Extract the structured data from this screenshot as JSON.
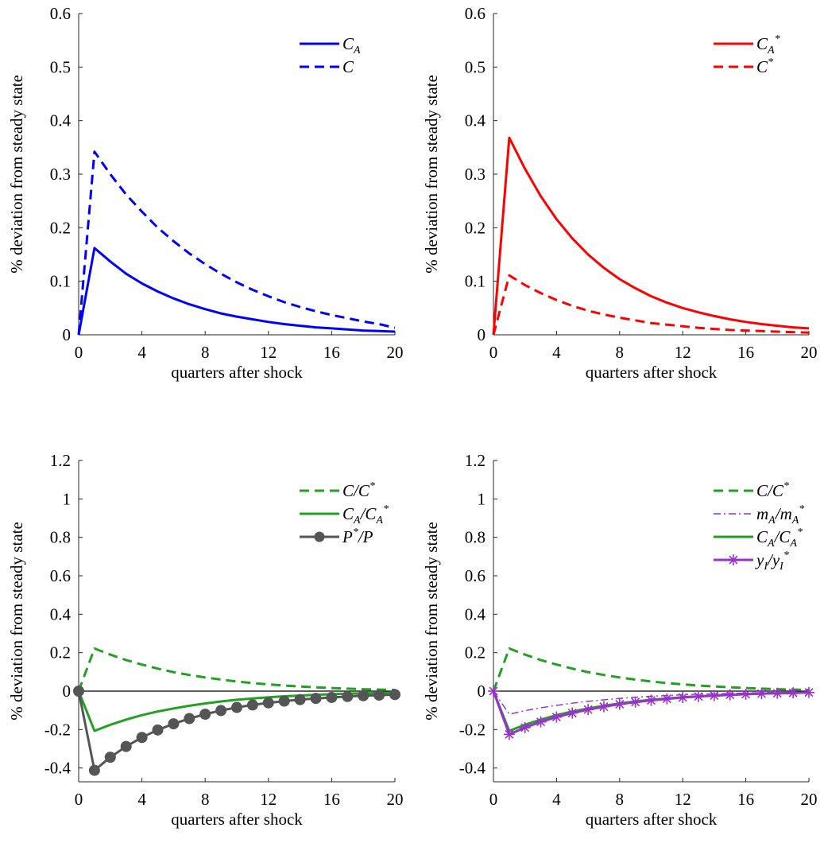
{
  "chart_data": [
    {
      "type": "line",
      "xlabel": "quarters after shock",
      "ylabel": "% deviation from steady state",
      "xlim": [
        0,
        20
      ],
      "ylim": [
        0,
        0.6
      ],
      "xticks": [
        0,
        4,
        8,
        12,
        16,
        20
      ],
      "yticks": [
        "0",
        "0.1",
        "0.2",
        "0.3",
        "0.4",
        "0.5",
        "0.6"
      ],
      "legend_position": "top-right",
      "x": [
        0,
        1,
        2,
        3,
        4,
        5,
        6,
        7,
        8,
        9,
        10,
        11,
        12,
        13,
        14,
        15,
        16,
        17,
        18,
        19,
        20
      ],
      "series": [
        {
          "name": "C_A",
          "color": "#0000ff",
          "style": "solid",
          "values": [
            0,
            0.162,
            0.137,
            0.114,
            0.096,
            0.081,
            0.068,
            0.057,
            0.048,
            0.04,
            0.034,
            0.029,
            0.024,
            0.02,
            0.017,
            0.014,
            0.012,
            0.01,
            0.008,
            0.007,
            0.006
          ]
        },
        {
          "name": "C",
          "color": "#0000ff",
          "style": "dashed",
          "values": [
            0,
            0.342,
            0.3,
            0.262,
            0.23,
            0.2,
            0.175,
            0.152,
            0.132,
            0.114,
            0.098,
            0.084,
            0.072,
            0.061,
            0.052,
            0.044,
            0.037,
            0.031,
            0.025,
            0.02,
            0.013
          ]
        }
      ]
    },
    {
      "type": "line",
      "xlabel": "quarters after shock",
      "ylabel": "% deviation from steady state",
      "xlim": [
        0,
        20
      ],
      "ylim": [
        0,
        0.6
      ],
      "xticks": [
        0,
        4,
        8,
        12,
        16,
        20
      ],
      "yticks": [
        "0",
        "0.1",
        "0.2",
        "0.3",
        "0.4",
        "0.5",
        "0.6"
      ],
      "legend_position": "top-right",
      "x": [
        0,
        1,
        2,
        3,
        4,
        5,
        6,
        7,
        8,
        9,
        10,
        11,
        12,
        13,
        14,
        15,
        16,
        17,
        18,
        19,
        20
      ],
      "series": [
        {
          "name": "C*_A",
          "color": "#ff0000",
          "style": "solid",
          "values": [
            0,
            0.368,
            0.31,
            0.259,
            0.216,
            0.18,
            0.15,
            0.125,
            0.104,
            0.087,
            0.072,
            0.06,
            0.05,
            0.042,
            0.035,
            0.029,
            0.024,
            0.02,
            0.017,
            0.014,
            0.012
          ]
        },
        {
          "name": "C*",
          "color": "#ff0000",
          "style": "dashed",
          "values": [
            0,
            0.111,
            0.093,
            0.078,
            0.065,
            0.054,
            0.045,
            0.038,
            0.032,
            0.027,
            0.022,
            0.019,
            0.016,
            0.013,
            0.011,
            0.009,
            0.008,
            0.007,
            0.006,
            0.005,
            0.004
          ]
        }
      ]
    },
    {
      "type": "line",
      "xlabel": "quarters after shock",
      "ylabel": "% deviation from steady state",
      "xlim": [
        0,
        20
      ],
      "ylim": [
        -0.45,
        1.2
      ],
      "xticks": [
        0,
        4,
        8,
        12,
        16,
        20
      ],
      "yticks": [
        "-0.4",
        "-0.2",
        "0",
        "0.2",
        "0.4",
        "0.6",
        "0.8",
        "1",
        "1.2"
      ],
      "legend_position": "top-right",
      "zero_line": true,
      "x": [
        0,
        1,
        2,
        3,
        4,
        5,
        6,
        7,
        8,
        9,
        10,
        11,
        12,
        13,
        14,
        15,
        16,
        17,
        18,
        19,
        20
      ],
      "series": [
        {
          "name": "C/C*",
          "color": "#22a022",
          "style": "dashed",
          "values": [
            0,
            0.222,
            0.19,
            0.162,
            0.138,
            0.117,
            0.099,
            0.084,
            0.071,
            0.06,
            0.05,
            0.042,
            0.035,
            0.029,
            0.024,
            0.02,
            0.016,
            0.013,
            0.01,
            0.008,
            0.006
          ]
        },
        {
          "name": "C_A/C*_A",
          "color": "#22a022",
          "style": "solid",
          "values": [
            0,
            -0.207,
            -0.175,
            -0.148,
            -0.125,
            -0.106,
            -0.09,
            -0.076,
            -0.064,
            -0.054,
            -0.045,
            -0.038,
            -0.032,
            -0.027,
            -0.023,
            -0.019,
            -0.016,
            -0.013,
            -0.011,
            -0.009,
            -0.007
          ]
        },
        {
          "name": "P*/P",
          "color": "#555555",
          "style": "solid",
          "marker": "circle",
          "values": [
            0,
            -0.412,
            -0.344,
            -0.288,
            -0.241,
            -0.202,
            -0.17,
            -0.143,
            -0.12,
            -0.101,
            -0.085,
            -0.072,
            -0.061,
            -0.052,
            -0.044,
            -0.038,
            -0.033,
            -0.028,
            -0.024,
            -0.021,
            -0.018
          ]
        }
      ]
    },
    {
      "type": "line",
      "xlabel": "quarters after shock",
      "ylabel": "% deviation from steady state",
      "xlim": [
        0,
        20
      ],
      "ylim": [
        -0.45,
        1.2
      ],
      "xticks": [
        0,
        4,
        8,
        12,
        16,
        20
      ],
      "yticks": [
        "-0.4",
        "-0.2",
        "0",
        "0.2",
        "0.4",
        "0.6",
        "0.8",
        "1",
        "1.2"
      ],
      "legend_position": "top-right",
      "zero_line": true,
      "x": [
        0,
        1,
        2,
        3,
        4,
        5,
        6,
        7,
        8,
        9,
        10,
        11,
        12,
        13,
        14,
        15,
        16,
        17,
        18,
        19,
        20
      ],
      "series": [
        {
          "name": "C/C*",
          "color": "#22a022",
          "style": "dashed",
          "values": [
            0,
            0.222,
            0.19,
            0.162,
            0.138,
            0.117,
            0.099,
            0.084,
            0.071,
            0.06,
            0.05,
            0.042,
            0.035,
            0.029,
            0.024,
            0.02,
            0.016,
            0.013,
            0.01,
            0.008,
            0.006
          ]
        },
        {
          "name": "m_A/m*_A",
          "color": "#8a2be2",
          "style": "dashdot",
          "values": [
            0,
            -0.12,
            -0.102,
            -0.087,
            -0.074,
            -0.063,
            -0.053,
            -0.045,
            -0.038,
            -0.032,
            -0.027,
            -0.023,
            -0.019,
            -0.016,
            -0.014,
            -0.012,
            -0.01,
            -0.008,
            -0.007,
            -0.006,
            -0.005
          ]
        },
        {
          "name": "C_A/C*_A",
          "color": "#22a022",
          "style": "solid",
          "values": [
            0,
            -0.207,
            -0.175,
            -0.148,
            -0.125,
            -0.106,
            -0.09,
            -0.076,
            -0.064,
            -0.054,
            -0.045,
            -0.038,
            -0.032,
            -0.027,
            -0.023,
            -0.019,
            -0.016,
            -0.013,
            -0.011,
            -0.009,
            -0.007
          ]
        },
        {
          "name": "y_I/y*_I",
          "color": "#9932cc",
          "style": "solid",
          "marker": "asterisk",
          "values": [
            0,
            -0.225,
            -0.19,
            -0.16,
            -0.135,
            -0.114,
            -0.096,
            -0.081,
            -0.068,
            -0.057,
            -0.048,
            -0.04,
            -0.033,
            -0.028,
            -0.023,
            -0.019,
            -0.016,
            -0.013,
            -0.011,
            -0.009,
            -0.007
          ]
        }
      ]
    }
  ]
}
